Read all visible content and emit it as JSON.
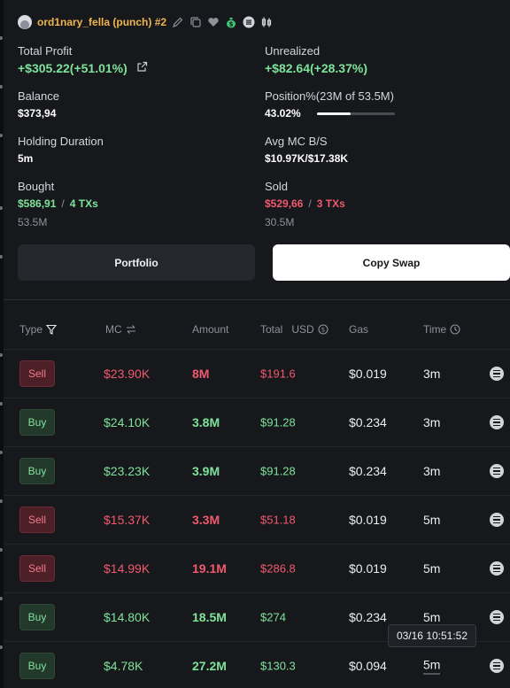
{
  "header": {
    "name": "ord1nary_fella (punch) #2",
    "icons": [
      "edit-icon",
      "copy-icon",
      "heart-icon",
      "money-bag-icon",
      "list-icon",
      "candles-icon"
    ]
  },
  "stats": {
    "total_profit": {
      "label": "Total Profit",
      "value": "+$305.22(+51.01%)"
    },
    "unrealized": {
      "label": "Unrealized",
      "value": "+$82.64(+28.37%)"
    },
    "balance": {
      "label": "Balance",
      "value": "$373,94"
    },
    "position": {
      "label": "Position%(23M of 53.5M)",
      "value": "43.02%",
      "progress": 0.43
    },
    "holding": {
      "label": "Holding Duration",
      "value": "5m"
    },
    "avg_mc": {
      "label": "Avg MC B/S",
      "value": "$10.97K/$17.38K"
    },
    "bought": {
      "label": "Bought",
      "amount": "$586,91",
      "sep": "/",
      "txs": "4 TXs",
      "sub": "53.5M"
    },
    "sold": {
      "label": "Sold",
      "amount": "$529,66",
      "sep": "/",
      "txs": "3 TXs",
      "sub": "30.5M"
    }
  },
  "buttons": {
    "portfolio": "Portfolio",
    "copy_swap": "Copy Swap"
  },
  "table": {
    "headers": {
      "type": "Type",
      "mc": "MC",
      "amount": "Amount",
      "total": "Total",
      "usd": "USD",
      "gas": "Gas",
      "time": "Time"
    },
    "rows": [
      {
        "type": "Sell",
        "mc": "$23.90K",
        "amount": "8M",
        "total": "$191.6",
        "gas": "$0.019",
        "time": "3m"
      },
      {
        "type": "Buy",
        "mc": "$24.10K",
        "amount": "3.8M",
        "total": "$91.28",
        "gas": "$0.234",
        "time": "3m"
      },
      {
        "type": "Buy",
        "mc": "$23.23K",
        "amount": "3.9M",
        "total": "$91.28",
        "gas": "$0.234",
        "time": "3m"
      },
      {
        "type": "Sell",
        "mc": "$15.37K",
        "amount": "3.3M",
        "total": "$51.18",
        "gas": "$0.019",
        "time": "5m"
      },
      {
        "type": "Sell",
        "mc": "$14.99K",
        "amount": "19.1M",
        "total": "$286.8",
        "gas": "$0.019",
        "time": "5m"
      },
      {
        "type": "Buy",
        "mc": "$14.80K",
        "amount": "18.5M",
        "total": "$274",
        "gas": "$0.234",
        "time": "5m"
      },
      {
        "type": "Buy",
        "mc": "$4.78K",
        "amount": "27.2M",
        "total": "$130.3",
        "gas": "$0.094",
        "time": "5m"
      }
    ]
  },
  "tooltip": "03/16 10:51:52",
  "colors": {
    "buy": "#7ee39a",
    "sell": "#f0596e",
    "accent_name": "#f0b64d"
  }
}
